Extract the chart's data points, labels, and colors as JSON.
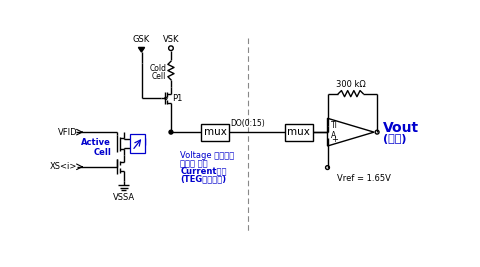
{
  "bg_color": "#ffffff",
  "line_color": "#000000",
  "blue_color": "#0000cd",
  "fig_width": 4.81,
  "fig_height": 2.67,
  "dpi": 100,
  "labels": {
    "GSK": "GSK",
    "VSK": "VSK",
    "cold_cell_1": "Cold",
    "cold_cell_2": "Cell",
    "P1": "P1",
    "mux": "mux",
    "DO": "DO(0:15)",
    "VFID": "VFID",
    "XS": "XS<i>",
    "VSSA": "VSSA",
    "active_cell": "Active\nCell",
    "ann1": "Voltage 인가하여",
    "ann2": "시간에 따른",
    "ann3": "Current측정",
    "ann4": "(TEG측정방법)",
    "resistor_label": "300 kΩ",
    "TI": "TI",
    "A": "A",
    "plus": "+",
    "Vref": "Vref = 1.65V",
    "Vout": "Vout",
    "measured": "(측정)"
  }
}
